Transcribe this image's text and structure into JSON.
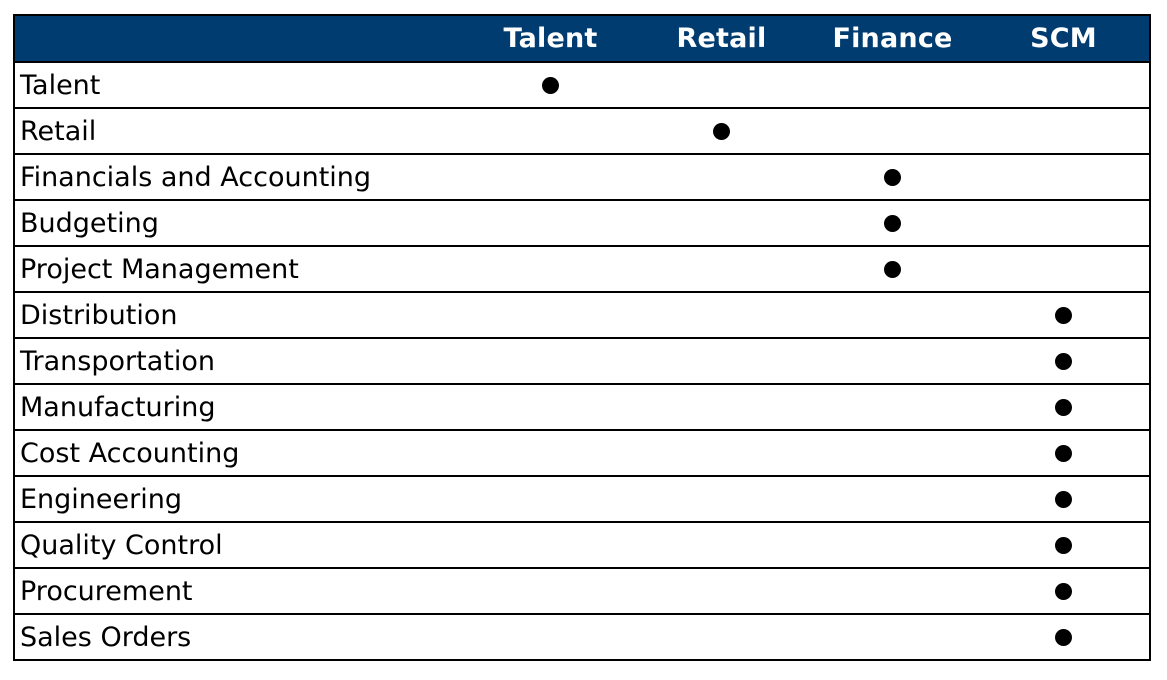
{
  "columns": [
    "Talent",
    "Retail",
    "Finance",
    "SCM"
  ],
  "rows": [
    {
      "label": "Talent",
      "column": "Talent"
    },
    {
      "label": "Retail",
      "column": "Retail"
    },
    {
      "label": "Financials and Accounting",
      "column": "Finance"
    },
    {
      "label": "Budgeting",
      "column": "Finance"
    },
    {
      "label": "Project Management",
      "column": "Finance"
    },
    {
      "label": "Distribution",
      "column": "SCM"
    },
    {
      "label": "Transportation",
      "column": "SCM"
    },
    {
      "label": "Manufacturing",
      "column": "SCM"
    },
    {
      "label": "Cost Accounting",
      "column": "SCM"
    },
    {
      "label": "Engineering",
      "column": "SCM"
    },
    {
      "label": "Quality Control",
      "column": "SCM"
    },
    {
      "label": "Procurement",
      "column": "SCM"
    },
    {
      "label": "Sales Orders",
      "column": "SCM"
    }
  ],
  "colors": {
    "header_background": "#003C70",
    "header_text": "#ffffff",
    "mark": "#000000"
  },
  "mark_icon": "filled-circle-icon"
}
